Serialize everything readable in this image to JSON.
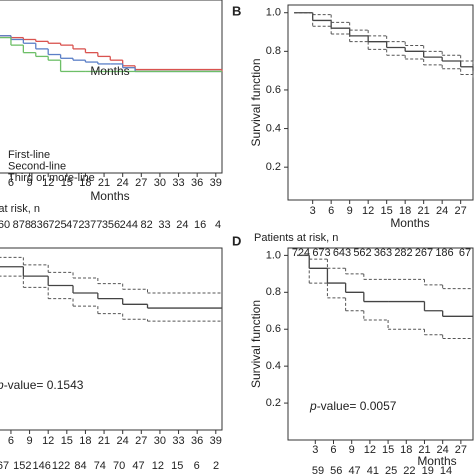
{
  "chart_data": [
    {
      "type": "line",
      "step": true,
      "annotation": "Months",
      "xlabel": "Months",
      "risk_label": "Patients at risk, n",
      "at_risk": [
        60,
        878,
        836,
        725,
        472,
        377,
        356,
        244,
        82,
        33,
        24,
        16,
        4
      ],
      "x": [
        0,
        4,
        6,
        8,
        10,
        12,
        14,
        16,
        18,
        20,
        22,
        24,
        26,
        40
      ],
      "series": [
        {
          "name": "First-line",
          "color": "#d9534f",
          "style": "solid",
          "values": [
            0.9,
            0.88,
            0.87,
            0.86,
            0.85,
            0.84,
            0.83,
            0.81,
            0.79,
            0.77,
            0.75,
            0.72,
            0.7,
            0.69
          ]
        },
        {
          "name": "Second-line",
          "color": "#5b7fc7",
          "style": "solid",
          "values": [
            0.9,
            0.88,
            0.86,
            0.84,
            0.81,
            0.78,
            0.76,
            0.75,
            0.74,
            0.73,
            0.73,
            0.71,
            0.69,
            0.69
          ]
        },
        {
          "name": "Third or more-line",
          "color": "#6dbf67",
          "style": "solid",
          "values": [
            0.9,
            0.87,
            0.83,
            0.79,
            0.77,
            0.75,
            0.69,
            0.69,
            0.69,
            0.69,
            0.69,
            0.69,
            0.69,
            0.69
          ]
        }
      ],
      "legend": true,
      "xlim": [
        0,
        40
      ],
      "ylim": [
        0.15,
        1.07
      ],
      "xticks": [
        6,
        9,
        12,
        15,
        18,
        21,
        24,
        27,
        30,
        33,
        36,
        39
      ]
    },
    {
      "type": "line",
      "step": true,
      "label": "B",
      "ylabel": "Survival function",
      "xlabel": "Months",
      "risk_label": "Patients at risk, n",
      "at_risk": [
        724,
        673,
        643,
        562,
        363,
        282,
        267,
        186,
        67
      ],
      "x": [
        0,
        3,
        6,
        9,
        12,
        15,
        18,
        21,
        24,
        27,
        29
      ],
      "series": [
        {
          "color": "#444444",
          "style": "solid",
          "values": [
            1.0,
            0.96,
            0.92,
            0.88,
            0.85,
            0.82,
            0.8,
            0.77,
            0.75,
            0.72,
            0.7
          ]
        },
        {
          "color": "#555555",
          "style": "dashed",
          "values": [
            1.0,
            0.99,
            0.95,
            0.91,
            0.88,
            0.85,
            0.83,
            0.8,
            0.78,
            0.75,
            0.73
          ]
        },
        {
          "color": "#555555",
          "style": "dashed",
          "values": [
            1.0,
            0.93,
            0.89,
            0.85,
            0.81,
            0.78,
            0.76,
            0.73,
            0.71,
            0.68,
            0.66
          ]
        }
      ],
      "xlim": [
        -1,
        29
      ],
      "ylim": [
        0.03,
        1.04
      ],
      "xticks": [
        3,
        6,
        9,
        12,
        15,
        18,
        21,
        24,
        27
      ],
      "yticks": [
        0.2,
        0.4,
        0.6,
        0.8,
        {
          "value": 1,
          "label": "1.0"
        }
      ]
    },
    {
      "type": "line",
      "step": true,
      "p_symbol": "p",
      "p_label": "-value= ",
      "p_value": 0.1543,
      "at_risk": [
        67,
        152,
        146,
        122,
        84,
        74,
        70,
        47,
        12,
        15,
        6,
        2
      ],
      "x": [
        0,
        4,
        8,
        12,
        16,
        20,
        24,
        28,
        40
      ],
      "series": [
        {
          "color": "#444444",
          "style": "solid",
          "values": [
            0.97,
            0.94,
            0.89,
            0.84,
            0.8,
            0.77,
            0.74,
            0.72,
            0.72
          ]
        },
        {
          "color": "#555555",
          "style": "dashed",
          "values": [
            1.0,
            0.99,
            0.95,
            0.91,
            0.88,
            0.85,
            0.82,
            0.8,
            0.8
          ]
        },
        {
          "color": "#555555",
          "style": "dashed",
          "values": [
            0.93,
            0.89,
            0.83,
            0.77,
            0.73,
            0.69,
            0.66,
            0.65,
            0.65
          ]
        }
      ],
      "xlim": [
        0,
        40
      ],
      "ylim": [
        0.07,
        1.04
      ],
      "xticks": [
        6,
        9,
        12,
        15,
        18,
        21,
        24,
        27,
        30,
        33,
        36,
        39
      ]
    },
    {
      "type": "line",
      "step": true,
      "label": "D",
      "ylabel": "Survival function",
      "xlabel": "Months",
      "p_symbol": "p",
      "p_label": "-value= ",
      "p_value": 0.0057,
      "at_risk": [
        59,
        56,
        47,
        41,
        25,
        22,
        19,
        14
      ],
      "x": [
        0,
        2,
        5,
        8,
        11,
        15,
        21,
        24,
        29
      ],
      "series": [
        {
          "color": "#444444",
          "style": "solid",
          "values": [
            1.0,
            0.93,
            0.85,
            0.8,
            0.75,
            0.75,
            0.7,
            0.67,
            0.67
          ]
        },
        {
          "color": "#555555",
          "style": "dashed",
          "values": [
            1.0,
            0.98,
            0.93,
            0.9,
            0.87,
            0.87,
            0.84,
            0.82,
            0.82
          ]
        },
        {
          "color": "#555555",
          "style": "dashed",
          "values": [
            1.0,
            0.85,
            0.77,
            0.7,
            0.65,
            0.6,
            0.57,
            0.55,
            0.55
          ]
        }
      ],
      "xlim": [
        -1.5,
        29
      ],
      "ylim": [
        0,
        1.04
      ],
      "xticks": [
        3,
        6,
        9,
        12,
        15,
        18,
        21,
        24,
        27
      ],
      "yticks": [
        0.2,
        0.4,
        0.6,
        0.8,
        {
          "value": 1,
          "label": "1.0"
        }
      ]
    }
  ]
}
